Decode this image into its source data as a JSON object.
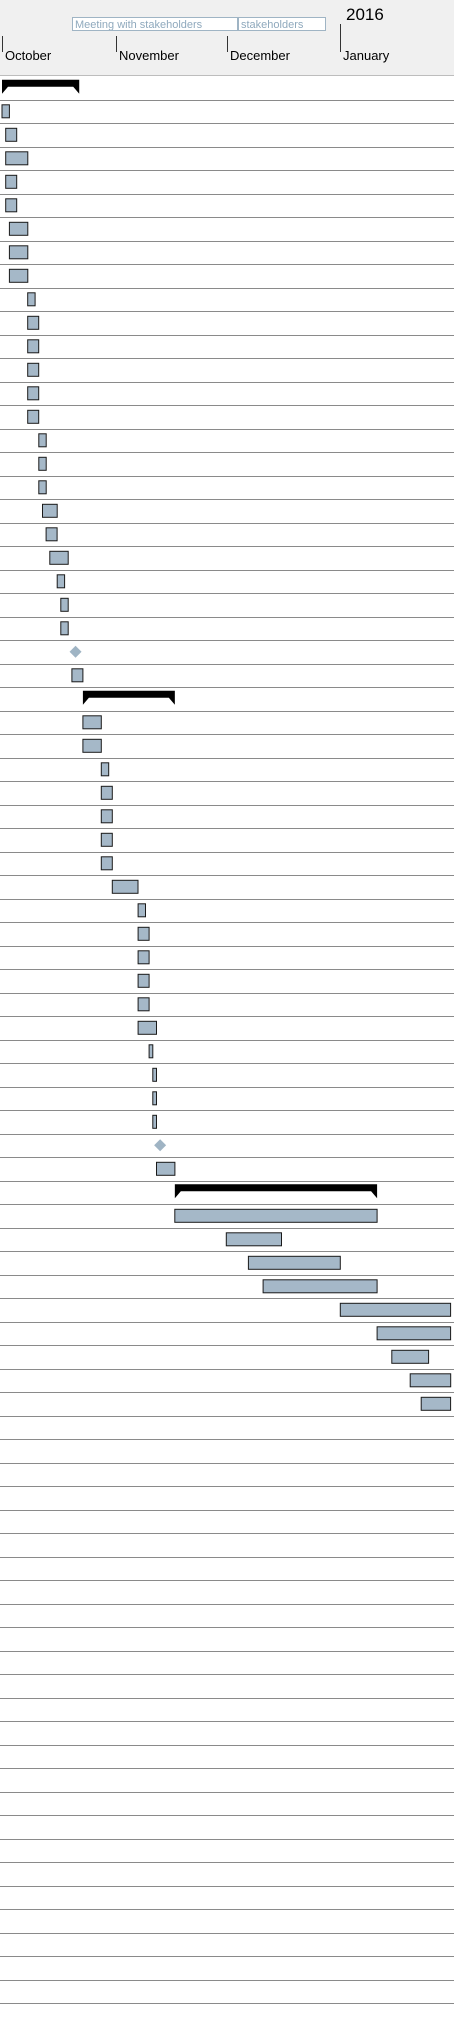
{
  "header": {
    "year": "2016",
    "months": [
      "October",
      "November",
      "December",
      "January"
    ],
    "milestone_labels": [
      "Meeting with stakeholders",
      "stakeholders"
    ]
  },
  "colors": {
    "task_fill": "#a5b8c8",
    "task_stroke": "#1a1a1a",
    "summary_fill": "#000000",
    "milestone_fill": "#9fb4c4",
    "grid": "#8a8a8a",
    "header_bg": "#f0f0f0"
  },
  "chart_data": {
    "type": "gantt",
    "timeline": {
      "months": [
        {
          "label": "October",
          "start": "2015-10-01"
        },
        {
          "label": "November",
          "start": "2015-11-01"
        },
        {
          "label": "December",
          "start": "2015-12-01"
        },
        {
          "label": "January",
          "start": "2016-01-01"
        }
      ],
      "visible_range": [
        "2015-10-01",
        "2016-01-11"
      ]
    },
    "row_count": 105,
    "tasks": [
      {
        "row": 0,
        "type": "summary",
        "start": "2015-10-01",
        "end": "2015-10-22"
      },
      {
        "row": 1,
        "type": "task",
        "start": "2015-10-01",
        "end": "2015-10-03"
      },
      {
        "row": 2,
        "type": "task",
        "start": "2015-10-02",
        "end": "2015-10-05"
      },
      {
        "row": 3,
        "type": "task",
        "start": "2015-10-02",
        "end": "2015-10-08"
      },
      {
        "row": 4,
        "type": "task",
        "start": "2015-10-02",
        "end": "2015-10-05"
      },
      {
        "row": 5,
        "type": "task",
        "start": "2015-10-02",
        "end": "2015-10-05"
      },
      {
        "row": 6,
        "type": "task",
        "start": "2015-10-03",
        "end": "2015-10-08"
      },
      {
        "row": 7,
        "type": "task",
        "start": "2015-10-03",
        "end": "2015-10-08"
      },
      {
        "row": 8,
        "type": "task",
        "start": "2015-10-03",
        "end": "2015-10-08"
      },
      {
        "row": 9,
        "type": "task",
        "start": "2015-10-08",
        "end": "2015-10-10"
      },
      {
        "row": 10,
        "type": "task",
        "start": "2015-10-08",
        "end": "2015-10-11"
      },
      {
        "row": 11,
        "type": "task",
        "start": "2015-10-08",
        "end": "2015-10-11"
      },
      {
        "row": 12,
        "type": "task",
        "start": "2015-10-08",
        "end": "2015-10-11"
      },
      {
        "row": 13,
        "type": "task",
        "start": "2015-10-08",
        "end": "2015-10-11"
      },
      {
        "row": 14,
        "type": "task",
        "start": "2015-10-08",
        "end": "2015-10-11"
      },
      {
        "row": 15,
        "type": "task",
        "start": "2015-10-11",
        "end": "2015-10-13"
      },
      {
        "row": 16,
        "type": "task",
        "start": "2015-10-11",
        "end": "2015-10-13"
      },
      {
        "row": 17,
        "type": "task",
        "start": "2015-10-11",
        "end": "2015-10-13"
      },
      {
        "row": 18,
        "type": "task",
        "start": "2015-10-12",
        "end": "2015-10-16"
      },
      {
        "row": 19,
        "type": "task",
        "start": "2015-10-13",
        "end": "2015-10-16"
      },
      {
        "row": 20,
        "type": "task",
        "start": "2015-10-14",
        "end": "2015-10-19"
      },
      {
        "row": 21,
        "type": "task",
        "start": "2015-10-16",
        "end": "2015-10-18"
      },
      {
        "row": 22,
        "type": "task",
        "start": "2015-10-17",
        "end": "2015-10-19"
      },
      {
        "row": 23,
        "type": "task",
        "start": "2015-10-17",
        "end": "2015-10-19"
      },
      {
        "row": 24,
        "type": "milestone",
        "date": "2015-10-21"
      },
      {
        "row": 25,
        "type": "task",
        "start": "2015-10-20",
        "end": "2015-10-23"
      },
      {
        "row": 26,
        "type": "summary",
        "start": "2015-10-23",
        "end": "2015-11-17"
      },
      {
        "row": 27,
        "type": "task",
        "start": "2015-10-23",
        "end": "2015-10-28"
      },
      {
        "row": 28,
        "type": "task",
        "start": "2015-10-23",
        "end": "2015-10-28"
      },
      {
        "row": 29,
        "type": "task",
        "start": "2015-10-28",
        "end": "2015-10-30"
      },
      {
        "row": 30,
        "type": "task",
        "start": "2015-10-28",
        "end": "2015-10-31"
      },
      {
        "row": 31,
        "type": "task",
        "start": "2015-10-28",
        "end": "2015-10-31"
      },
      {
        "row": 32,
        "type": "task",
        "start": "2015-10-28",
        "end": "2015-10-31"
      },
      {
        "row": 33,
        "type": "task",
        "start": "2015-10-28",
        "end": "2015-10-31"
      },
      {
        "row": 34,
        "type": "task",
        "start": "2015-10-31",
        "end": "2015-11-07"
      },
      {
        "row": 35,
        "type": "task",
        "start": "2015-11-07",
        "end": "2015-11-09"
      },
      {
        "row": 36,
        "type": "task",
        "start": "2015-11-07",
        "end": "2015-11-10"
      },
      {
        "row": 37,
        "type": "task",
        "start": "2015-11-07",
        "end": "2015-11-10"
      },
      {
        "row": 38,
        "type": "task",
        "start": "2015-11-07",
        "end": "2015-11-10"
      },
      {
        "row": 39,
        "type": "task",
        "start": "2015-11-07",
        "end": "2015-11-10"
      },
      {
        "row": 40,
        "type": "task",
        "start": "2015-11-07",
        "end": "2015-11-12"
      },
      {
        "row": 41,
        "type": "task",
        "start": "2015-11-10",
        "end": "2015-11-11"
      },
      {
        "row": 42,
        "type": "task",
        "start": "2015-11-11",
        "end": "2015-11-12"
      },
      {
        "row": 43,
        "type": "task",
        "start": "2015-11-11",
        "end": "2015-11-12"
      },
      {
        "row": 44,
        "type": "task",
        "start": "2015-11-11",
        "end": "2015-11-12"
      },
      {
        "row": 45,
        "type": "milestone",
        "date": "2015-11-13"
      },
      {
        "row": 46,
        "type": "task",
        "start": "2015-11-12",
        "end": "2015-11-17"
      },
      {
        "row": 47,
        "type": "summary",
        "start": "2015-11-17",
        "end": "2016-01-11"
      },
      {
        "row": 48,
        "type": "task",
        "start": "2015-11-17",
        "end": "2016-01-11"
      },
      {
        "row": 49,
        "type": "task",
        "start": "2015-12-01",
        "end": "2015-12-16"
      },
      {
        "row": 50,
        "type": "task",
        "start": "2015-12-07",
        "end": "2016-01-01"
      },
      {
        "row": 51,
        "type": "task",
        "start": "2015-12-11",
        "end": "2016-01-11"
      },
      {
        "row": 52,
        "type": "task",
        "start": "2016-01-01",
        "end": "2016-01-31"
      },
      {
        "row": 53,
        "type": "task",
        "start": "2016-01-11",
        "end": "2016-01-31"
      },
      {
        "row": 54,
        "type": "task",
        "start": "2016-01-15",
        "end": "2016-01-25"
      },
      {
        "row": 55,
        "type": "task",
        "start": "2016-01-20",
        "end": "2016-01-31"
      },
      {
        "row": 56,
        "type": "task",
        "start": "2016-01-23",
        "end": "2016-01-31"
      }
    ]
  }
}
